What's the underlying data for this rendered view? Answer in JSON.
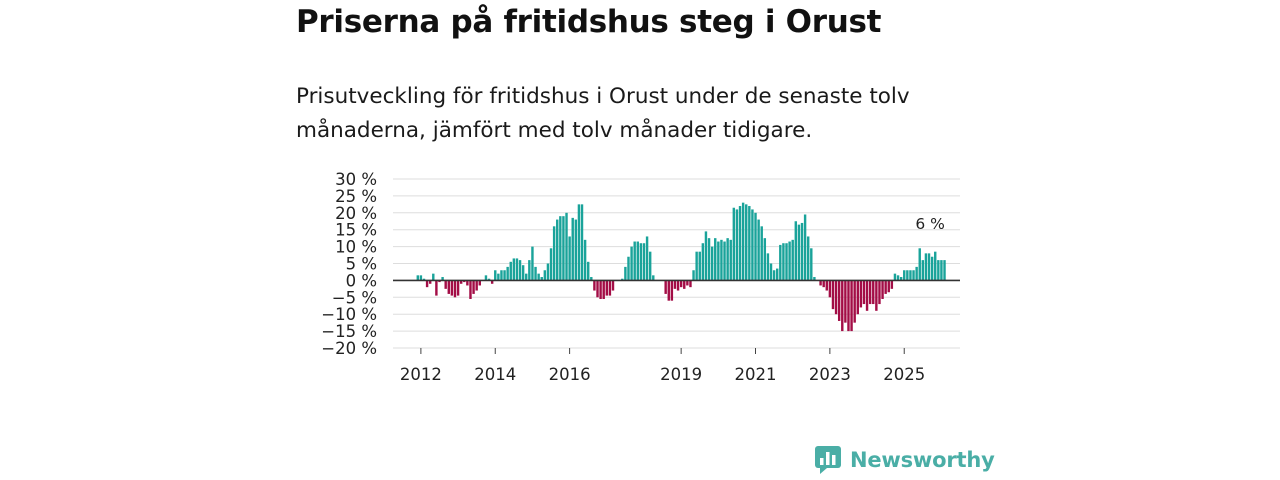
{
  "header": {
    "title": "Priserna på fritidshus steg i Orust",
    "subtitle": "Prisutveckling för fritidshus i Orust under de senaste tolv månaderna, jämfört med tolv månader tidigare."
  },
  "brand": {
    "name": "Newsworthy",
    "color": "#4aaea6"
  },
  "colors": {
    "positive": "#1aa39a",
    "negative": "#a30d46",
    "grid": "#dddddd",
    "zero": "#333333"
  },
  "chart_data": {
    "type": "bar",
    "title": "Priserna på fritidshus steg i Orust",
    "xlabel": "",
    "ylabel": "",
    "ylim": [
      -20,
      30
    ],
    "y_ticks": [
      30,
      25,
      20,
      15,
      10,
      5,
      0,
      -5,
      -10,
      -15,
      -20
    ],
    "y_tick_labels": [
      "30 %",
      "25 %",
      "20 %",
      "15 %",
      "10 %",
      "5 %",
      "0 %",
      "−5 %",
      "−10 %",
      "−15 %",
      "−20 %"
    ],
    "x_range": [
      2011.25,
      2026.5
    ],
    "x_ticks": [
      2012,
      2014,
      2016,
      2019,
      2021,
      2023,
      2025
    ],
    "x_tick_labels": [
      "2012",
      "2014",
      "2016",
      "2019",
      "2021",
      "2023",
      "2025"
    ],
    "series": [
      {
        "name": "Prisutveckling",
        "start_year": 2011.917,
        "step_months": 1,
        "values": [
          1.5,
          1.5,
          0.5,
          -2,
          -1,
          2,
          -4.5,
          -0.5,
          1,
          -2.5,
          -4,
          -4.5,
          -5,
          -4.5,
          -1,
          -0.5,
          -1.5,
          -5.5,
          -4,
          -3,
          -1.5,
          0,
          1.5,
          0.5,
          -1,
          3,
          2,
          3,
          3,
          4,
          5.5,
          6.5,
          6.5,
          6,
          4.5,
          2,
          6,
          10,
          4,
          2,
          1,
          3,
          5,
          9.5,
          16,
          18,
          19,
          19,
          20,
          13,
          18.5,
          18,
          22.5,
          22.5,
          12,
          5.5,
          1,
          -3,
          -5,
          -5.5,
          -5.5,
          -4.5,
          -4.5,
          -3,
          0,
          0,
          0.5,
          4,
          7,
          10,
          11.5,
          11.5,
          11,
          11,
          13,
          8.5,
          1.5,
          0,
          0,
          0,
          -4,
          -6,
          -6,
          -2.5,
          -3,
          -2,
          -2.5,
          -1.5,
          -2,
          3,
          8.5,
          8.5,
          11,
          14.5,
          12.5,
          10,
          12.5,
          11.5,
          12,
          11.5,
          12.5,
          12,
          21.5,
          21,
          22,
          23,
          22.5,
          22,
          21,
          20,
          18,
          16,
          12.5,
          8,
          5,
          3,
          3.5,
          10.5,
          11,
          11,
          11.5,
          12,
          17.5,
          16.5,
          17,
          19.5,
          13,
          9.5,
          1,
          0,
          -1.5,
          -2,
          -3,
          -5,
          -8.5,
          -10,
          -12,
          -15,
          -12.5,
          -15,
          -15,
          -12.5,
          -10,
          -8,
          -7,
          -9,
          -7,
          -7,
          -9,
          -7,
          -5.5,
          -4,
          -3.5,
          -2.5,
          2,
          1.5,
          1,
          3,
          3,
          3,
          3,
          4,
          9.5,
          6,
          8,
          8,
          7,
          8.5,
          6,
          6,
          6
        ]
      }
    ],
    "annotations": [
      {
        "label": "6 %",
        "x": 2025.75,
        "y": 6
      }
    ]
  }
}
